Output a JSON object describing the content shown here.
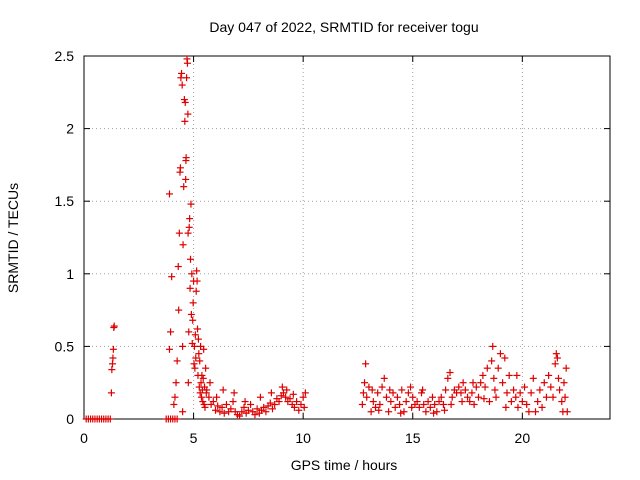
{
  "chart_data": {
    "type": "scatter",
    "title": "Day 047 of 2022, SRMTID for receiver togu",
    "xlabel": "GPS time / hours",
    "ylabel": "SRMTID / TECUs",
    "xlim": [
      0,
      24
    ],
    "ylim": [
      0,
      2.5
    ],
    "xticks": [
      0,
      5,
      10,
      15,
      20
    ],
    "xtick_labels": [
      "0",
      "5",
      "10",
      "15",
      "20"
    ],
    "yticks": [
      0,
      0.5,
      1,
      1.5,
      2,
      2.5
    ],
    "ytick_labels": [
      "0",
      "0.5",
      "1",
      "1.5",
      "2",
      "2.5"
    ],
    "grid": true,
    "marker": "+",
    "marker_color": "#dd0000",
    "series": [
      {
        "name": "SRMTID",
        "points": [
          [
            0.1,
            0
          ],
          [
            0.2,
            0
          ],
          [
            0.3,
            0
          ],
          [
            0.4,
            0
          ],
          [
            0.5,
            0
          ],
          [
            0.6,
            0
          ],
          [
            0.7,
            0
          ],
          [
            0.8,
            0
          ],
          [
            0.9,
            0
          ],
          [
            1.0,
            0
          ],
          [
            1.1,
            0
          ],
          [
            1.2,
            0
          ],
          [
            1.25,
            0.18
          ],
          [
            1.27,
            0.34
          ],
          [
            1.3,
            0.38
          ],
          [
            1.32,
            0.42
          ],
          [
            1.34,
            0.48
          ],
          [
            1.36,
            0.63
          ],
          [
            1.38,
            0.64
          ],
          [
            3.75,
            0
          ],
          [
            3.85,
            0
          ],
          [
            3.95,
            0
          ],
          [
            4.05,
            0
          ],
          [
            4.15,
            0
          ],
          [
            4.25,
            0
          ],
          [
            3.9,
            0.48
          ],
          [
            3.95,
            0.6
          ],
          [
            4.0,
            0.98
          ],
          [
            3.9,
            1.55
          ],
          [
            4.1,
            0.1
          ],
          [
            4.15,
            0.15
          ],
          [
            4.2,
            0.25
          ],
          [
            4.25,
            0.4
          ],
          [
            4.3,
            1.05
          ],
          [
            4.32,
            0.75
          ],
          [
            4.35,
            1.28
          ],
          [
            4.38,
            1.7
          ],
          [
            4.4,
            1.73
          ],
          [
            4.42,
            2.35
          ],
          [
            4.45,
            2.38
          ],
          [
            4.48,
            2.3
          ],
          [
            4.5,
            0.05
          ],
          [
            4.5,
            0.5
          ],
          [
            4.52,
            1.2
          ],
          [
            4.55,
            1.6
          ],
          [
            4.58,
            2.2
          ],
          [
            4.6,
            2.05
          ],
          [
            4.62,
            2.18
          ],
          [
            4.64,
            1.65
          ],
          [
            4.65,
            1.78
          ],
          [
            4.66,
            1.8
          ],
          [
            4.68,
            2.35
          ],
          [
            4.7,
            2.48
          ],
          [
            4.72,
            2.45
          ],
          [
            4.74,
            2.1
          ],
          [
            4.75,
            1.28
          ],
          [
            4.76,
            0.25
          ],
          [
            4.78,
            0.6
          ],
          [
            4.8,
            1.32
          ],
          [
            4.82,
            1.38
          ],
          [
            4.84,
            0.9
          ],
          [
            4.86,
            1.1
          ],
          [
            4.88,
            1.48
          ],
          [
            4.9,
            0.72
          ],
          [
            4.92,
            1.0
          ],
          [
            4.94,
            0.52
          ],
          [
            4.96,
            0.68
          ],
          [
            4.98,
            0.8
          ],
          [
            5.0,
            0.95
          ],
          [
            5.02,
            0.38
          ],
          [
            5.04,
            0.5
          ],
          [
            5.06,
            0.35
          ],
          [
            5.08,
            0.58
          ],
          [
            5.1,
            0.42
          ],
          [
            5.12,
            0.88
          ],
          [
            5.14,
            1.02
          ],
          [
            5.16,
            0.95
          ],
          [
            5.18,
            0.62
          ],
          [
            5.2,
            0.3
          ],
          [
            5.22,
            0.55
          ],
          [
            5.24,
            0.45
          ],
          [
            5.26,
            0.22
          ],
          [
            5.28,
            0.4
          ],
          [
            5.3,
            0.18
          ],
          [
            5.32,
            0.5
          ],
          [
            5.34,
            0.25
          ],
          [
            5.36,
            0.15
          ],
          [
            5.38,
            0.3
          ],
          [
            5.4,
            0.2
          ],
          [
            5.42,
            0.12
          ],
          [
            5.44,
            0.28
          ],
          [
            5.46,
            0.48
          ],
          [
            5.48,
            0.1
          ],
          [
            5.5,
            0.22
          ],
          [
            5.52,
            0.08
          ],
          [
            5.55,
            0.35
          ],
          [
            5.58,
            0.18
          ],
          [
            5.6,
            0.2
          ],
          [
            5.7,
            0.15
          ],
          [
            5.8,
            0.1
          ],
          [
            5.9,
            0.12
          ],
          [
            6.0,
            0.06
          ],
          [
            6.1,
            0.09
          ],
          [
            6.2,
            0.05
          ],
          [
            6.3,
            0.08
          ],
          [
            6.4,
            0.04
          ],
          [
            6.5,
            0.1
          ],
          [
            6.6,
            0.05
          ],
          [
            6.7,
            0.07
          ],
          [
            6.8,
            0.12
          ],
          [
            6.9,
            0.05
          ],
          [
            7.0,
            0.03
          ],
          [
            7.1,
            0.02
          ],
          [
            7.2,
            0.05
          ],
          [
            7.3,
            0.08
          ],
          [
            7.4,
            0.04
          ],
          [
            7.5,
            0.06
          ],
          [
            7.6,
            0.1
          ],
          [
            7.7,
            0.05
          ],
          [
            7.8,
            0.03
          ],
          [
            7.9,
            0.07
          ],
          [
            8.0,
            0.04
          ],
          [
            8.1,
            0.06
          ],
          [
            8.2,
            0.08
          ],
          [
            8.3,
            0.05
          ],
          [
            8.4,
            0.09
          ],
          [
            8.5,
            0.11
          ],
          [
            8.6,
            0.07
          ],
          [
            8.7,
            0.1
          ],
          [
            8.8,
            0.14
          ],
          [
            8.9,
            0.12
          ],
          [
            9.0,
            0.16
          ],
          [
            9.1,
            0.18
          ],
          [
            9.2,
            0.15
          ],
          [
            9.3,
            0.12
          ],
          [
            9.4,
            0.14
          ],
          [
            9.5,
            0.1
          ],
          [
            9.6,
            0.08
          ],
          [
            9.7,
            0.12
          ],
          [
            9.8,
            0.06
          ],
          [
            9.9,
            0.1
          ],
          [
            10.0,
            0.15
          ],
          [
            10.1,
            0.18
          ],
          [
            5.75,
            0.25
          ],
          [
            6.05,
            0.15
          ],
          [
            6.35,
            0.2
          ],
          [
            6.85,
            0.18
          ],
          [
            7.35,
            0.12
          ],
          [
            8.05,
            0.15
          ],
          [
            8.55,
            0.18
          ],
          [
            9.05,
            0.22
          ],
          [
            9.25,
            0.2
          ],
          [
            9.55,
            0.17
          ],
          [
            10.05,
            0.08
          ],
          [
            12.7,
            0.1
          ],
          [
            12.8,
            0.25
          ],
          [
            12.85,
            0.38
          ],
          [
            12.9,
            0.15
          ],
          [
            13.0,
            0.22
          ],
          [
            13.1,
            0.05
          ],
          [
            13.2,
            0.12
          ],
          [
            13.3,
            0.08
          ],
          [
            13.4,
            0.18
          ],
          [
            13.5,
            0.1
          ],
          [
            13.6,
            0.22
          ],
          [
            13.7,
            0.28
          ],
          [
            13.8,
            0.15
          ],
          [
            13.9,
            0.05
          ],
          [
            14.0,
            0.12
          ],
          [
            14.1,
            0.18
          ],
          [
            14.2,
            0.08
          ],
          [
            14.3,
            0.15
          ],
          [
            14.4,
            0.1
          ],
          [
            14.5,
            0.2
          ],
          [
            14.6,
            0.05
          ],
          [
            14.7,
            0.12
          ],
          [
            14.8,
            0.18
          ],
          [
            14.9,
            0.22
          ],
          [
            15.0,
            0.15
          ],
          [
            15.1,
            0.1
          ],
          [
            15.2,
            0.12
          ],
          [
            15.3,
            0.08
          ],
          [
            15.4,
            0.18
          ],
          [
            15.5,
            0.1
          ],
          [
            15.6,
            0.05
          ],
          [
            15.7,
            0.12
          ],
          [
            15.8,
            0.08
          ],
          [
            15.9,
            0.15
          ],
          [
            16.0,
            0.1
          ],
          [
            16.1,
            0.05
          ],
          [
            16.2,
            0.12
          ],
          [
            16.3,
            0.15
          ],
          [
            16.4,
            0.1
          ],
          [
            16.5,
            0.2
          ],
          [
            16.6,
            0.28
          ],
          [
            16.7,
            0.32
          ],
          [
            16.8,
            0.15
          ],
          [
            16.9,
            0.2
          ],
          [
            17.0,
            0.18
          ],
          [
            17.1,
            0.22
          ],
          [
            17.2,
            0.18
          ],
          [
            17.3,
            0.25
          ],
          [
            17.4,
            0.2
          ],
          [
            17.5,
            0.15
          ],
          [
            17.6,
            0.12
          ],
          [
            17.7,
            0.18
          ],
          [
            17.8,
            0.1
          ],
          [
            17.9,
            0.22
          ],
          [
            18.0,
            0.15
          ],
          [
            18.1,
            0.25
          ],
          [
            18.2,
            0.3
          ],
          [
            18.3,
            0.22
          ],
          [
            18.4,
            0.35
          ],
          [
            18.5,
            0.12
          ],
          [
            18.6,
            0.4
          ],
          [
            18.65,
            0.5
          ],
          [
            18.7,
            0.28
          ],
          [
            18.8,
            0.15
          ],
          [
            18.9,
            0.35
          ],
          [
            19.0,
            0.45
          ],
          [
            19.1,
            0.25
          ],
          [
            19.2,
            0.42
          ],
          [
            19.3,
            0.18
          ],
          [
            19.4,
            0.3
          ],
          [
            19.5,
            0.12
          ],
          [
            19.6,
            0.2
          ],
          [
            19.7,
            0.15
          ],
          [
            19.8,
            0.08
          ],
          [
            19.9,
            0.18
          ],
          [
            20.0,
            0.12
          ],
          [
            20.2,
            0.1
          ],
          [
            20.4,
            0.18
          ],
          [
            20.6,
            0.05
          ],
          [
            20.8,
            0.2
          ],
          [
            21.0,
            0.25
          ],
          [
            21.2,
            0.3
          ],
          [
            21.4,
            0.15
          ],
          [
            21.5,
            0.38
          ],
          [
            21.55,
            0.45
          ],
          [
            21.6,
            0.42
          ],
          [
            21.7,
            0.2
          ],
          [
            21.8,
            0.12
          ],
          [
            21.9,
            0.25
          ],
          [
            22.0,
            0.35
          ],
          [
            22.05,
            0.05
          ],
          [
            12.75,
            0.18
          ],
          [
            13.15,
            0.2
          ],
          [
            13.45,
            0.06
          ],
          [
            13.95,
            0.2
          ],
          [
            14.45,
            0.04
          ],
          [
            14.95,
            0.08
          ],
          [
            15.45,
            0.2
          ],
          [
            15.95,
            0.04
          ],
          [
            16.45,
            0.06
          ],
          [
            16.75,
            0.1
          ],
          [
            17.25,
            0.12
          ],
          [
            17.75,
            0.25
          ],
          [
            18.25,
            0.14
          ],
          [
            18.75,
            0.2
          ],
          [
            19.25,
            0.08
          ],
          [
            19.75,
            0.3
          ],
          [
            20.1,
            0.22
          ],
          [
            20.3,
            0.05
          ],
          [
            20.5,
            0.28
          ],
          [
            20.7,
            0.12
          ],
          [
            20.9,
            0.08
          ],
          [
            21.1,
            0.15
          ],
          [
            21.3,
            0.22
          ],
          [
            21.65,
            0.28
          ],
          [
            21.85,
            0.05
          ],
          [
            21.95,
            0.15
          ]
        ]
      }
    ]
  }
}
